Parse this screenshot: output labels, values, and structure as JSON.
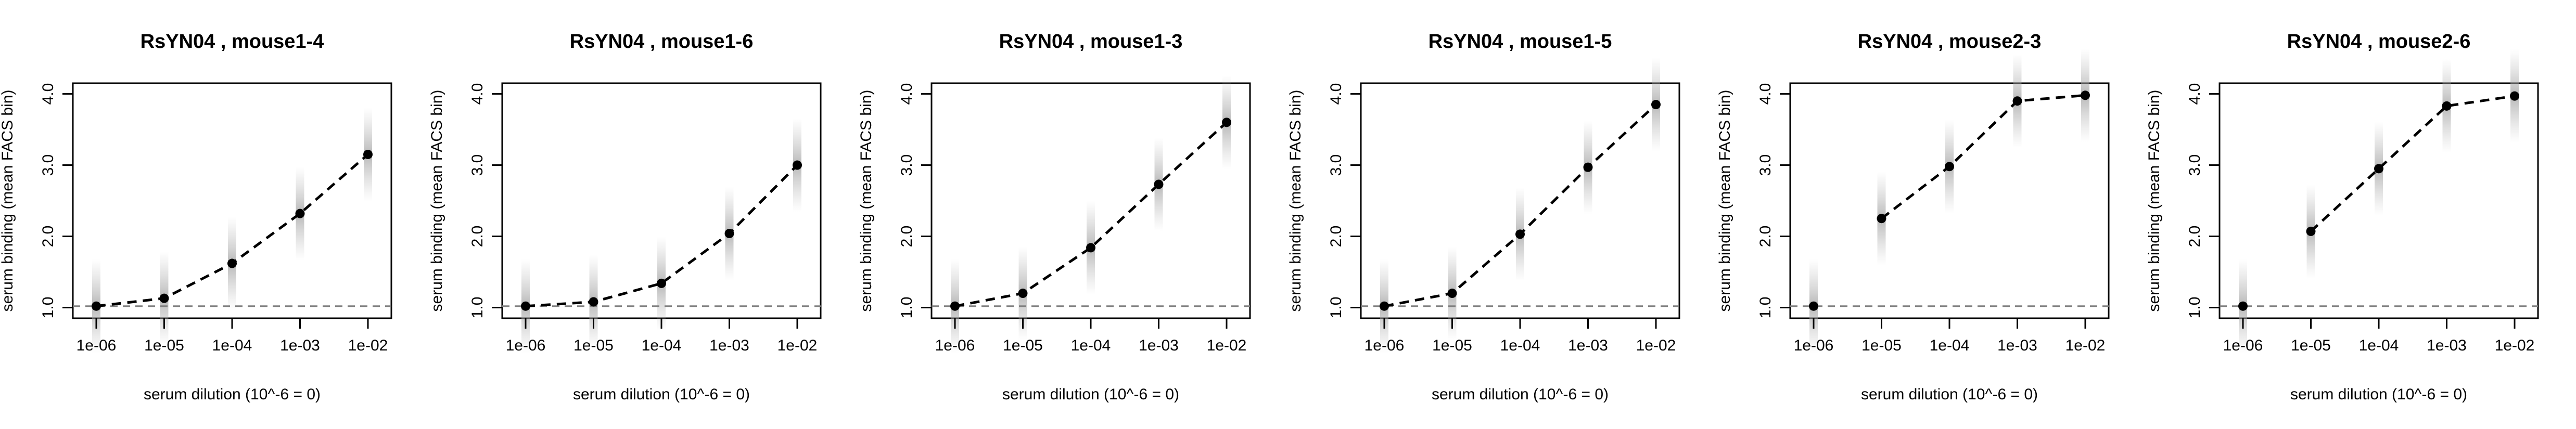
{
  "chart_data": [
    {
      "type": "line",
      "title": "RsYN04 , mouse1-4",
      "xlabel": "serum dilution (10^-6 = 0)",
      "ylabel": "serum binding (mean FACS bin)",
      "x_scale": "log",
      "x_ticks": [
        "1e-06",
        "1e-05",
        "1e-04",
        "1e-03",
        "1e-02"
      ],
      "y_ticks": [
        "1.0",
        "2.0",
        "3.0",
        "4.0"
      ],
      "ylim": [
        0.85,
        4.15
      ],
      "x": [
        1e-06,
        1e-05,
        0.0001,
        0.001,
        0.01
      ],
      "y": [
        1.02,
        1.13,
        1.62,
        2.32,
        3.15
      ],
      "baseline": 1.02,
      "grid": false
    },
    {
      "type": "line",
      "title": "RsYN04 , mouse1-6",
      "xlabel": "serum dilution (10^-6 = 0)",
      "ylabel": "serum binding (mean FACS bin)",
      "x_scale": "log",
      "x_ticks": [
        "1e-06",
        "1e-05",
        "1e-04",
        "1e-03",
        "1e-02"
      ],
      "y_ticks": [
        "1.0",
        "2.0",
        "3.0",
        "4.0"
      ],
      "ylim": [
        0.85,
        4.15
      ],
      "x": [
        1e-06,
        1e-05,
        0.0001,
        0.001,
        0.01
      ],
      "y": [
        1.02,
        1.08,
        1.34,
        2.04,
        3.0
      ],
      "baseline": 1.02,
      "grid": false
    },
    {
      "type": "line",
      "title": "RsYN04 , mouse1-3",
      "xlabel": "serum dilution (10^-6 = 0)",
      "ylabel": "serum binding (mean FACS bin)",
      "x_scale": "log",
      "x_ticks": [
        "1e-06",
        "1e-05",
        "1e-04",
        "1e-03",
        "1e-02"
      ],
      "y_ticks": [
        "1.0",
        "2.0",
        "3.0",
        "4.0"
      ],
      "ylim": [
        0.85,
        4.15
      ],
      "x": [
        1e-06,
        1e-05,
        0.0001,
        0.001,
        0.01
      ],
      "y": [
        1.02,
        1.2,
        1.84,
        2.73,
        3.6
      ],
      "baseline": 1.02,
      "grid": false
    },
    {
      "type": "line",
      "title": "RsYN04 , mouse1-5",
      "xlabel": "serum dilution (10^-6 = 0)",
      "ylabel": "serum binding (mean FACS bin)",
      "x_scale": "log",
      "x_ticks": [
        "1e-06",
        "1e-05",
        "1e-04",
        "1e-03",
        "1e-02"
      ],
      "y_ticks": [
        "1.0",
        "2.0",
        "3.0",
        "4.0"
      ],
      "ylim": [
        0.85,
        4.15
      ],
      "x": [
        1e-06,
        1e-05,
        0.0001,
        0.001,
        0.01
      ],
      "y": [
        1.02,
        1.2,
        2.03,
        2.97,
        3.85
      ],
      "baseline": 1.02,
      "grid": false
    },
    {
      "type": "line",
      "title": "RsYN04 , mouse2-3",
      "xlabel": "serum dilution (10^-6 = 0)",
      "ylabel": "serum binding (mean FACS bin)",
      "x_scale": "log",
      "x_ticks": [
        "1e-06",
        "1e-05",
        "1e-04",
        "1e-03",
        "1e-02"
      ],
      "y_ticks": [
        "1.0",
        "2.0",
        "3.0",
        "4.0"
      ],
      "ylim": [
        0.85,
        4.15
      ],
      "x": [
        1e-06,
        1e-05,
        0.0001,
        0.001,
        0.01
      ],
      "y": [
        1.02,
        2.25,
        2.98,
        3.9,
        3.98
      ],
      "dashed_from_index": 1,
      "baseline": 1.02,
      "grid": false
    },
    {
      "type": "line",
      "title": "RsYN04 , mouse2-6",
      "xlabel": "serum dilution (10^-6 = 0)",
      "ylabel": "serum binding (mean FACS bin)",
      "x_scale": "log",
      "x_ticks": [
        "1e-06",
        "1e-05",
        "1e-04",
        "1e-03",
        "1e-02"
      ],
      "y_ticks": [
        "1.0",
        "2.0",
        "3.0",
        "4.0"
      ],
      "ylim": [
        0.85,
        4.15
      ],
      "x": [
        1e-06,
        1e-05,
        0.0001,
        0.001,
        0.01
      ],
      "y": [
        1.02,
        2.07,
        2.95,
        3.83,
        3.97
      ],
      "dashed_from_index": 1,
      "baseline": 1.02,
      "grid": false
    }
  ]
}
